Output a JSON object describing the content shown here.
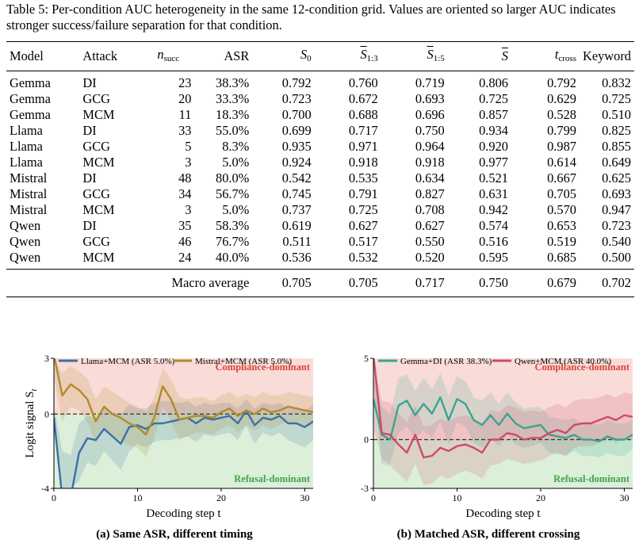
{
  "caption": "Table 5: Per-condition AUC heterogeneity in the same 12-condition grid. Values are oriented so larger AUC indicates stronger success/failure separation for that condition.",
  "table": {
    "headers": {
      "model": "Model",
      "attack": "Attack",
      "n_succ": "n",
      "n_succ_sub": "succ",
      "asr": "ASR",
      "s0": "S",
      "s0_sub": "0",
      "s13": "S",
      "s13_sub": "1:3",
      "s15": "S",
      "s15_sub": "1:5",
      "sbar": "S",
      "tcross": "t",
      "tcross_sub": "cross",
      "keyword": "Keyword"
    },
    "rows": [
      [
        "Gemma",
        "DI",
        "23",
        "38.3%",
        "0.792",
        "0.760",
        "0.719",
        "0.806",
        "0.792",
        "0.832"
      ],
      [
        "Gemma",
        "GCG",
        "20",
        "33.3%",
        "0.723",
        "0.672",
        "0.693",
        "0.725",
        "0.629",
        "0.725"
      ],
      [
        "Gemma",
        "MCM",
        "11",
        "18.3%",
        "0.700",
        "0.688",
        "0.696",
        "0.857",
        "0.528",
        "0.510"
      ],
      [
        "Llama",
        "DI",
        "33",
        "55.0%",
        "0.699",
        "0.717",
        "0.750",
        "0.934",
        "0.799",
        "0.825"
      ],
      [
        "Llama",
        "GCG",
        "5",
        "8.3%",
        "0.935",
        "0.971",
        "0.964",
        "0.920",
        "0.987",
        "0.855"
      ],
      [
        "Llama",
        "MCM",
        "3",
        "5.0%",
        "0.924",
        "0.918",
        "0.918",
        "0.977",
        "0.614",
        "0.649"
      ],
      [
        "Mistral",
        "DI",
        "48",
        "80.0%",
        "0.542",
        "0.535",
        "0.634",
        "0.521",
        "0.667",
        "0.625"
      ],
      [
        "Mistral",
        "GCG",
        "34",
        "56.7%",
        "0.745",
        "0.791",
        "0.827",
        "0.631",
        "0.705",
        "0.693"
      ],
      [
        "Mistral",
        "MCM",
        "3",
        "5.0%",
        "0.737",
        "0.725",
        "0.708",
        "0.942",
        "0.570",
        "0.947"
      ],
      [
        "Qwen",
        "DI",
        "35",
        "58.3%",
        "0.619",
        "0.627",
        "0.627",
        "0.574",
        "0.653",
        "0.723"
      ],
      [
        "Qwen",
        "GCG",
        "46",
        "76.7%",
        "0.511",
        "0.517",
        "0.550",
        "0.516",
        "0.519",
        "0.540"
      ],
      [
        "Qwen",
        "MCM",
        "24",
        "40.0%",
        "0.536",
        "0.532",
        "0.520",
        "0.595",
        "0.685",
        "0.500"
      ]
    ],
    "macro": {
      "label": "Macro average",
      "values": [
        "0.705",
        "0.705",
        "0.717",
        "0.750",
        "0.679",
        "0.702"
      ]
    }
  },
  "chart_data": [
    {
      "type": "line",
      "caption": "(a) Same ASR, different timing",
      "xlabel": "Decoding step t",
      "ylabel": "Logit signal S",
      "ylabel_sub": "t",
      "xlim": [
        0,
        31
      ],
      "ylim": [
        -4,
        3
      ],
      "xticks": [
        0,
        10,
        20,
        30
      ],
      "yticks": [
        -4,
        0,
        3
      ],
      "zero_line": true,
      "regions": [
        {
          "label": "Compliance-dominant",
          "range": [
            0,
            3
          ],
          "color": "#f9dcd7",
          "label_color": "#d9443c"
        },
        {
          "label": "Refusal-dominant",
          "range": [
            -4,
            0
          ],
          "color": "#dcefd9",
          "label_color": "#3fa34d"
        }
      ],
      "legend_position": "top",
      "series": [
        {
          "name": "Llama+MCM (ASR 5.0%)",
          "color": "#3f6ea8",
          "x": [
            0,
            1,
            2,
            3,
            4,
            5,
            6,
            7,
            8,
            9,
            10,
            11,
            12,
            13,
            14,
            15,
            16,
            17,
            18,
            19,
            20,
            21,
            22,
            23,
            24,
            25,
            26,
            27,
            28,
            29,
            30,
            31
          ],
          "y": [
            -0.2,
            -4.5,
            -4.5,
            -2.1,
            -1.3,
            -1.4,
            -0.8,
            -1.2,
            -1.6,
            -0.7,
            -0.6,
            -0.8,
            -0.5,
            -0.5,
            -0.4,
            -0.3,
            -0.2,
            -0.5,
            -0.2,
            -0.3,
            -0.2,
            -0.1,
            -0.5,
            0.2,
            -0.6,
            -0.2,
            -0.3,
            -0.1,
            -0.5,
            -0.5,
            -0.7,
            -0.4
          ],
          "band_upper": [
            0.5,
            -2.0,
            -2.2,
            -0.5,
            -0.1,
            -0.2,
            0.4,
            0.1,
            0.0,
            0.5,
            0.3,
            0.3,
            0.6,
            0.7,
            0.7,
            0.6,
            0.7,
            0.4,
            0.6,
            0.5,
            0.6,
            0.6,
            0.3,
            0.8,
            0.3,
            0.6,
            0.5,
            0.6,
            0.3,
            0.4,
            0.2,
            0.5
          ],
          "band_lower": [
            -1.0,
            -4.0,
            -4.0,
            -3.6,
            -2.6,
            -2.8,
            -2.0,
            -2.5,
            -3.0,
            -2.0,
            -1.6,
            -1.8,
            -1.5,
            -1.4,
            -1.4,
            -1.3,
            -1.2,
            -1.5,
            -1.1,
            -1.2,
            -1.1,
            -1.0,
            -1.4,
            -0.6,
            -1.6,
            -1.0,
            -1.2,
            -1.0,
            -1.4,
            -1.6,
            -1.8,
            -1.4
          ]
        },
        {
          "name": "Mistral+MCM (ASR 5.0%)",
          "color": "#b18a2a",
          "x": [
            0,
            1,
            2,
            3,
            4,
            5,
            6,
            7,
            8,
            9,
            10,
            11,
            12,
            13,
            14,
            15,
            16,
            17,
            18,
            19,
            20,
            21,
            22,
            23,
            24,
            25,
            26,
            27,
            28,
            29,
            30,
            31
          ],
          "y": [
            3.2,
            1.0,
            1.6,
            1.3,
            0.8,
            -0.4,
            0.4,
            0.0,
            -0.2,
            -0.5,
            -0.7,
            -1.1,
            -0.2,
            1.5,
            0.8,
            -0.3,
            -0.2,
            -0.1,
            -0.1,
            -0.2,
            0.1,
            0.3,
            -0.1,
            0.2,
            0.0,
            0.3,
            0.1,
            0.2,
            0.4,
            0.3,
            0.2,
            0.1
          ],
          "band_upper": [
            3.0,
            2.2,
            2.6,
            2.3,
            1.9,
            0.8,
            1.5,
            1.2,
            0.9,
            0.6,
            0.4,
            0.1,
            0.9,
            2.5,
            1.9,
            0.9,
            0.8,
            0.9,
            0.9,
            0.7,
            1.0,
            1.2,
            0.9,
            1.1,
            0.9,
            1.2,
            1.0,
            1.0,
            1.2,
            1.1,
            1.0,
            0.9
          ],
          "band_lower": [
            2.0,
            -0.4,
            0.4,
            0.2,
            -0.4,
            -1.6,
            -0.8,
            -1.2,
            -1.4,
            -1.7,
            -1.8,
            -2.3,
            -1.3,
            0.4,
            -0.4,
            -1.4,
            -1.2,
            -1.0,
            -1.0,
            -1.1,
            -0.8,
            -0.6,
            -1.0,
            -0.6,
            -0.9,
            -0.6,
            -0.8,
            -0.6,
            -0.4,
            -0.5,
            -0.6,
            -0.7
          ]
        }
      ]
    },
    {
      "type": "line",
      "caption": "(b) Matched ASR, different crossing",
      "xlabel": "Decoding step t",
      "ylabel": "",
      "xlim": [
        0,
        31
      ],
      "ylim": [
        -3,
        5
      ],
      "xticks": [
        0,
        10,
        20,
        30
      ],
      "yticks": [
        -3,
        0,
        5
      ],
      "zero_line": true,
      "regions": [
        {
          "label": "Compliance-dominant",
          "range": [
            0,
            5
          ],
          "color": "#f9dcd7",
          "label_color": "#d9443c"
        },
        {
          "label": "Refusal-dominant",
          "range": [
            -3,
            0
          ],
          "color": "#dcefd9",
          "label_color": "#3fa34d"
        }
      ],
      "legend_position": "top",
      "series": [
        {
          "name": "Gemma+DI (ASR 38.3%)",
          "color": "#3aa58f",
          "x": [
            0,
            1,
            2,
            3,
            4,
            5,
            6,
            7,
            8,
            9,
            10,
            11,
            12,
            13,
            14,
            15,
            16,
            17,
            18,
            19,
            20,
            21,
            22,
            23,
            24,
            25,
            26,
            27,
            28,
            29,
            30,
            31
          ],
          "y": [
            2.5,
            0.3,
            0.0,
            2.1,
            2.4,
            1.5,
            2.2,
            1.6,
            2.6,
            1.2,
            2.5,
            2.2,
            1.2,
            0.9,
            1.5,
            0.9,
            1.6,
            1.0,
            0.7,
            0.8,
            0.9,
            0.3,
            0.2,
            0.1,
            0.3,
            0.0,
            0.0,
            -0.1,
            0.2,
            0.0,
            0.0,
            0.3
          ],
          "band_upper": [
            4.0,
            2.0,
            1.6,
            3.8,
            4.0,
            3.0,
            3.8,
            3.1,
            4.1,
            2.7,
            3.9,
            3.6,
            2.6,
            2.4,
            2.9,
            2.2,
            2.9,
            2.3,
            1.9,
            2.0,
            2.0,
            1.4,
            1.3,
            1.2,
            1.3,
            1.0,
            1.0,
            0.9,
            1.2,
            1.0,
            1.0,
            1.2
          ],
          "band_lower": [
            0.8,
            -1.2,
            -1.5,
            0.4,
            0.8,
            0.0,
            0.6,
            0.1,
            1.1,
            -0.3,
            1.1,
            0.8,
            -0.2,
            -0.5,
            0.1,
            -0.4,
            0.3,
            -0.3,
            -0.5,
            -0.4,
            -0.2,
            -0.8,
            -0.9,
            -1.0,
            -0.7,
            -1.0,
            -1.0,
            -1.1,
            -0.8,
            -1.0,
            -1.0,
            -0.6
          ]
        },
        {
          "name": "Qwen+MCM (ASR 40.0%)",
          "color": "#cc4b6a",
          "x": [
            0,
            1,
            2,
            3,
            4,
            5,
            6,
            7,
            8,
            9,
            10,
            11,
            12,
            13,
            14,
            15,
            16,
            17,
            18,
            19,
            20,
            21,
            22,
            23,
            24,
            25,
            26,
            27,
            28,
            29,
            30,
            31
          ],
          "y": [
            5.2,
            0.4,
            0.3,
            -0.3,
            -0.8,
            0.3,
            -1.1,
            -1.0,
            -0.5,
            -0.7,
            -0.4,
            -0.3,
            -0.5,
            -0.8,
            0.0,
            0.0,
            0.4,
            0.3,
            0.0,
            0.1,
            0.1,
            0.4,
            0.6,
            0.4,
            0.9,
            1.0,
            1.0,
            1.2,
            1.4,
            1.2,
            1.5,
            1.4
          ],
          "band_upper": [
            5.0,
            2.4,
            2.3,
            1.6,
            1.1,
            2.1,
            0.8,
            0.9,
            1.3,
            1.1,
            1.4,
            1.5,
            1.3,
            1.0,
            1.8,
            1.7,
            2.1,
            2.0,
            1.7,
            1.8,
            1.7,
            2.0,
            2.2,
            2.0,
            2.4,
            2.5,
            2.5,
            2.6,
            2.8,
            2.6,
            2.9,
            2.8
          ],
          "band_lower": [
            3.5,
            -1.5,
            -1.6,
            -2.1,
            -2.6,
            -1.5,
            -2.8,
            -2.7,
            -2.2,
            -2.4,
            -2.1,
            -1.9,
            -2.1,
            -2.4,
            -1.6,
            -1.5,
            -1.2,
            -1.3,
            -1.5,
            -1.4,
            -1.3,
            -1.0,
            -0.8,
            -1.0,
            -0.5,
            -0.4,
            -0.4,
            -0.2,
            0.0,
            -0.2,
            0.1,
            0.0
          ]
        }
      ]
    }
  ]
}
